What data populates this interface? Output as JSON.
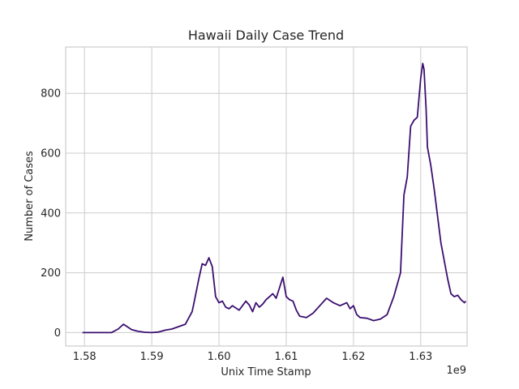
{
  "chart_data": {
    "type": "line",
    "title": "Hawaii Daily Case Trend",
    "xlabel": "Unix Time Stamp",
    "ylabel": "Number of Cases",
    "x_offset_label": "1e9",
    "xlim": [
      1577200000.0,
      1636900000.0
    ],
    "ylim": [
      -45,
      955
    ],
    "x_ticks": [
      1580000000.0,
      1590000000.0,
      1600000000.0,
      1610000000.0,
      1620000000.0,
      1630000000.0
    ],
    "x_tick_labels": [
      "1.58",
      "1.59",
      "1.60",
      "1.61",
      "1.62",
      "1.63"
    ],
    "y_ticks": [
      0,
      200,
      400,
      600,
      800
    ],
    "y_tick_labels": [
      "0",
      "200",
      "400",
      "600",
      "800"
    ],
    "grid": true,
    "line_color": "#3b0f70",
    "series": [
      {
        "x": [
          1579700000.0,
          1583000000.0,
          1584000000.0,
          1585000000.0,
          1585800000.0,
          1586200000.0,
          1587000000.0,
          1588000000.0,
          1589000000.0,
          1590000000.0,
          1591000000.0,
          1592000000.0,
          1593000000.0,
          1594000000.0,
          1595000000.0,
          1596000000.0,
          1596200000.0,
          1597000000.0,
          1597500000.0,
          1598000000.0,
          1598500000.0,
          1599000000.0,
          1599500000.0,
          1600000000.0,
          1600500000.0,
          1601000000.0,
          1601500000.0,
          1602000000.0,
          1603000000.0,
          1604000000.0,
          1604500000.0,
          1605000000.0,
          1605500000.0,
          1606000000.0,
          1606500000.0,
          1607000000.0,
          1608000000.0,
          1608500000.0,
          1609000000.0,
          1609500000.0,
          1610000000.0,
          1610500000.0,
          1611000000.0,
          1611500000.0,
          1612000000.0,
          1613000000.0,
          1614000000.0,
          1615000000.0,
          1616000000.0,
          1617000000.0,
          1617500000.0,
          1618000000.0,
          1619000000.0,
          1619500000.0,
          1620000000.0,
          1620500000.0,
          1621000000.0,
          1622000000.0,
          1623000000.0,
          1624000000.0,
          1625000000.0,
          1626000000.0,
          1627000000.0,
          1627500000.0,
          1628000000.0,
          1628500000.0,
          1629000000.0,
          1629500000.0,
          1630000000.0,
          1630300000.0,
          1630500000.0,
          1630800000.0,
          1631000000.0,
          1631500000.0,
          1632000000.0,
          1633000000.0,
          1634000000.0,
          1634500000.0,
          1635000000.0,
          1635500000.0,
          1636000000.0,
          1636500000.0,
          1636700000.0
        ],
        "values": [
          0,
          0,
          0,
          12,
          28,
          22,
          10,
          4,
          1,
          0,
          2,
          8,
          12,
          20,
          28,
          70,
          90,
          180,
          230,
          225,
          250,
          220,
          120,
          100,
          105,
          85,
          80,
          90,
          75,
          105,
          92,
          70,
          100,
          85,
          95,
          110,
          130,
          115,
          150,
          185,
          120,
          110,
          105,
          75,
          55,
          50,
          65,
          90,
          115,
          100,
          95,
          90,
          100,
          80,
          90,
          60,
          50,
          48,
          40,
          45,
          60,
          120,
          200,
          460,
          520,
          690,
          710,
          720,
          850,
          900,
          880,
          750,
          620,
          560,
          480,
          300,
          180,
          130,
          120,
          125,
          110,
          100,
          105
        ]
      }
    ]
  }
}
